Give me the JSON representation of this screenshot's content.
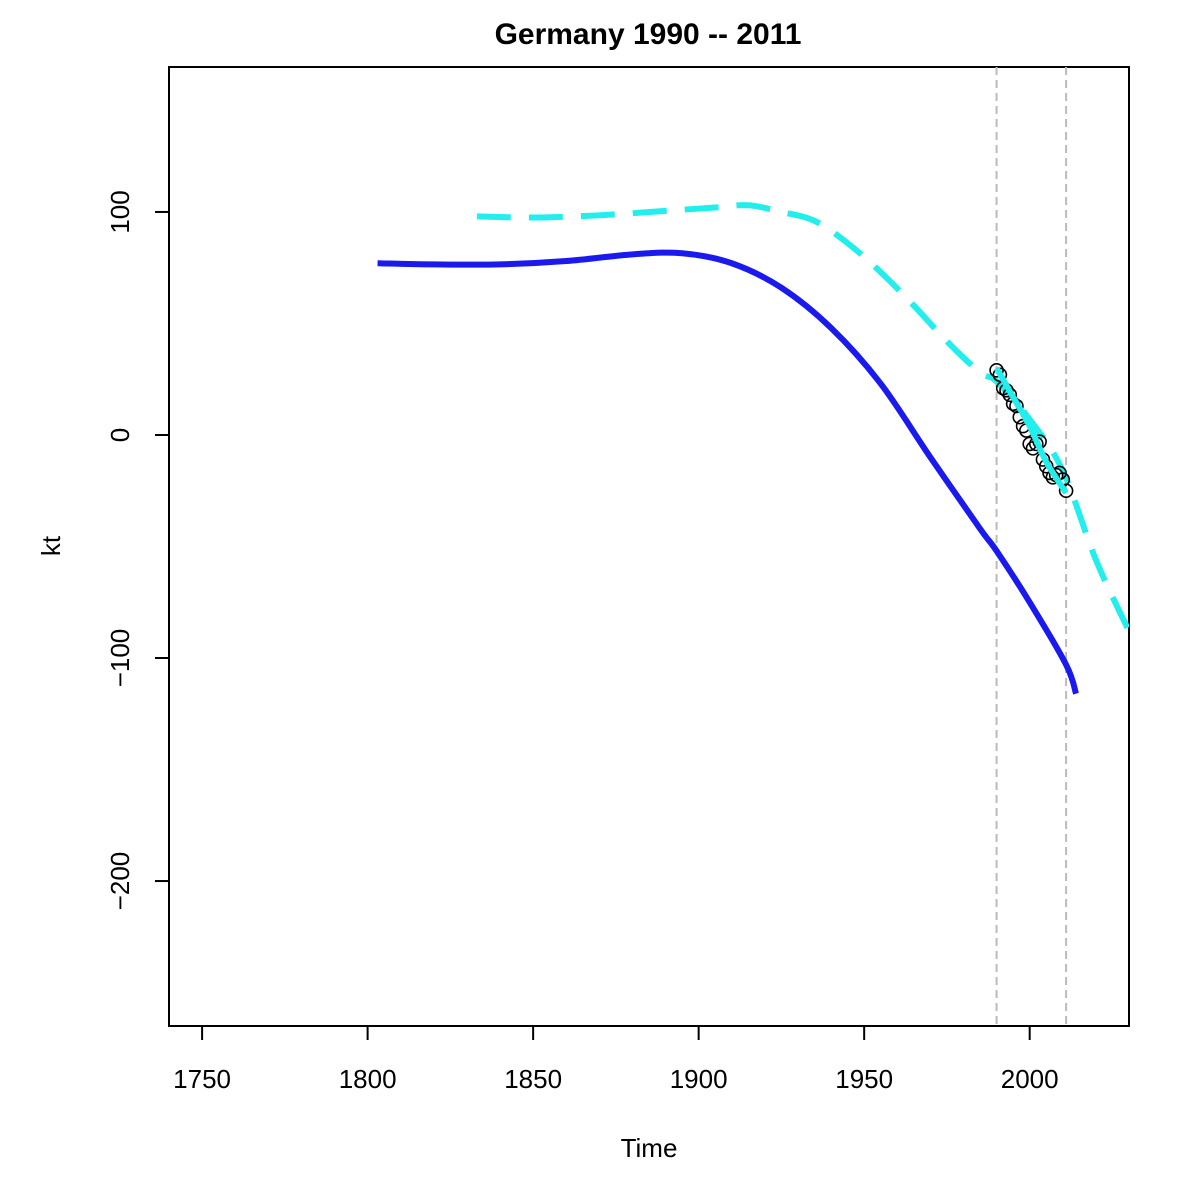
{
  "chart_data": {
    "type": "line",
    "title": "Germany 1990 -- 2011",
    "xlabel": "Time",
    "ylabel": "kt",
    "xlim": [
      1740,
      2030
    ],
    "ylim": [
      -265,
      165
    ],
    "x_ticks": [
      1750,
      1800,
      1850,
      1900,
      1950,
      2000
    ],
    "x_tick_labels": [
      "1750",
      "1800",
      "1850",
      "1900",
      "1950",
      "2000"
    ],
    "y_ticks": [
      -200,
      -100,
      0,
      100
    ],
    "y_tick_labels": [
      "−200",
      "−100",
      "0",
      "100"
    ],
    "grid": false,
    "legend": "none",
    "vertical_reference_lines": [
      1990,
      2011
    ],
    "series": [
      {
        "style": "solid",
        "color": "#1a1aee",
        "x": [
          1803,
          1820,
          1840,
          1860,
          1880,
          1895,
          1910,
          1925,
          1940,
          1955,
          1970,
          1985,
          1990,
          2000,
          2011,
          2014
        ],
        "values": [
          77,
          76.5,
          76.5,
          78,
          81,
          81.5,
          77,
          66,
          48,
          23,
          -10,
          -42,
          -52,
          -75,
          -103,
          -116
        ]
      },
      {
        "style": "dashed",
        "color": "#22eeee",
        "x": [
          1833,
          1850,
          1870,
          1890,
          1905,
          1915,
          1925,
          1935,
          1945,
          1955,
          1965,
          1975,
          1985,
          1990,
          2000,
          2010,
          2020,
          2030
        ],
        "values": [
          98,
          97.5,
          98.5,
          100.5,
          102,
          103,
          100,
          96,
          86,
          73,
          58,
          42,
          28,
          24,
          7,
          -16,
          -56,
          -88
        ]
      },
      {
        "style": "solid-thick",
        "color": "#22eeee",
        "x": [
          1990,
          1995,
          2000,
          2005,
          2011
        ],
        "values": [
          30,
          17,
          4,
          -12,
          -26
        ]
      },
      {
        "style": "thin",
        "color": "#dd0000",
        "x": [
          1990,
          1995,
          2000,
          2005,
          2011
        ],
        "values": [
          30,
          16,
          3,
          -11,
          -25
        ]
      },
      {
        "style": "points",
        "color": "#000000",
        "x": [
          1990,
          1991,
          1992,
          1993,
          1994,
          1995,
          1996,
          1997,
          1998,
          1999,
          2000,
          2001,
          2002,
          2003,
          2004,
          2005,
          2006,
          2007,
          2008,
          2009,
          2010,
          2011
        ],
        "values": [
          29,
          27,
          21,
          20,
          18,
          14,
          13,
          8,
          4,
          2,
          -4,
          -6,
          -4,
          -3,
          -11,
          -14,
          -17,
          -19,
          -18,
          -17,
          -20,
          -25
        ]
      }
    ]
  }
}
